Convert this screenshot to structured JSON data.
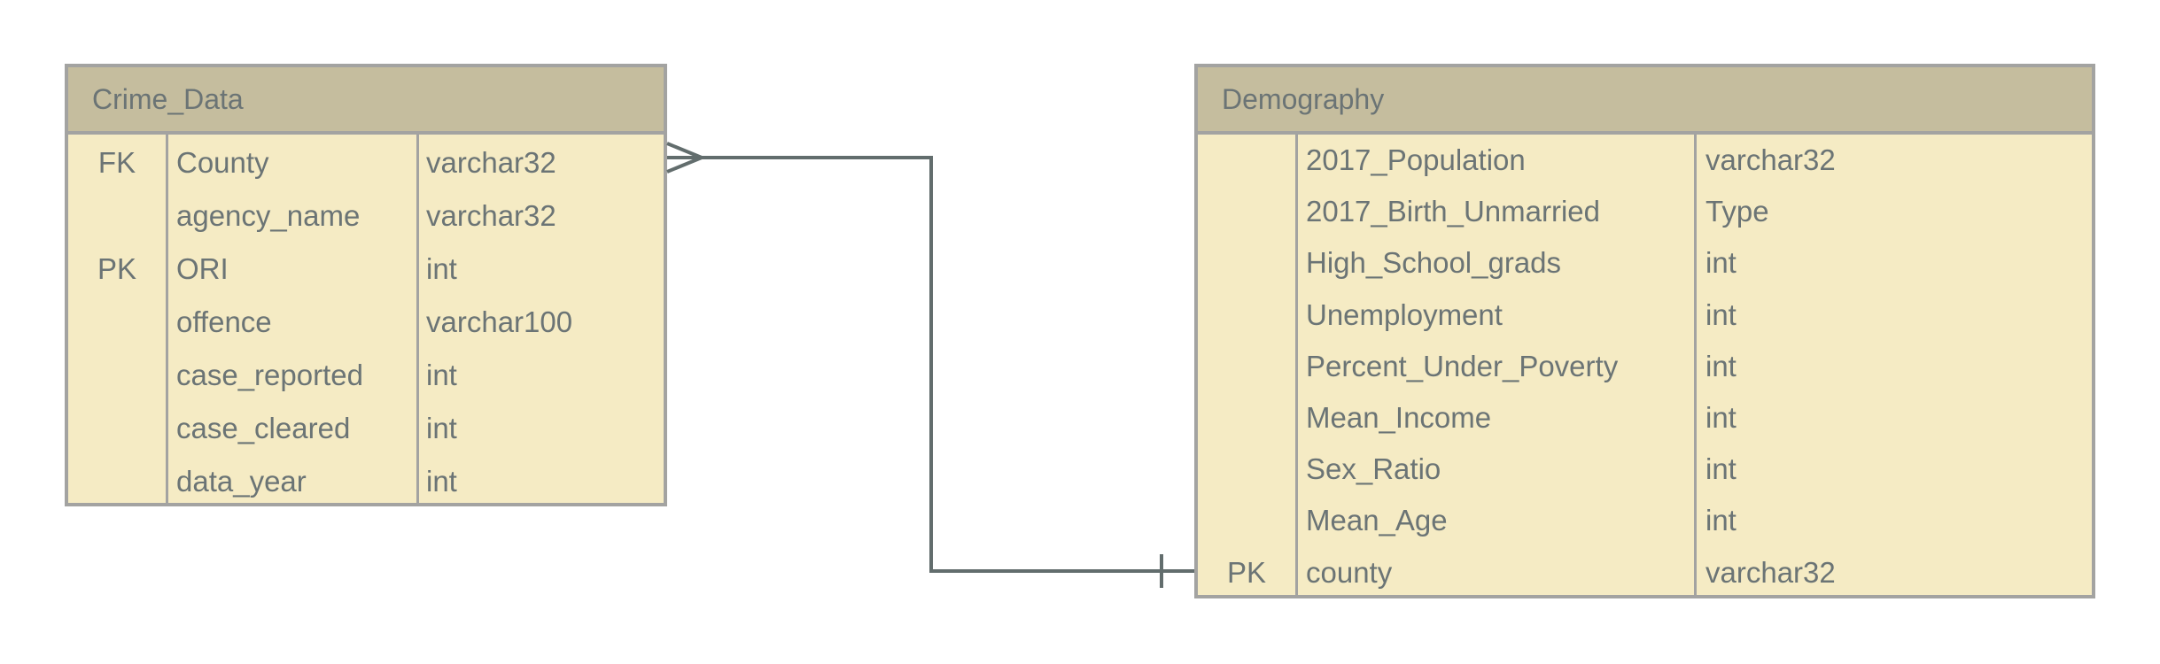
{
  "entities": [
    {
      "title": "Crime_Data",
      "fields": [
        {
          "key": "FK",
          "name": "County",
          "type": "varchar32"
        },
        {
          "key": "",
          "name": "agency_name",
          "type": "varchar32"
        },
        {
          "key": "PK",
          "name": "ORI",
          "type": "int"
        },
        {
          "key": "",
          "name": "offence",
          "type": "varchar100"
        },
        {
          "key": "",
          "name": "case_reported",
          "type": "int"
        },
        {
          "key": "",
          "name": "case_cleared",
          "type": "int"
        },
        {
          "key": "",
          "name": "data_year",
          "type": "int"
        }
      ]
    },
    {
      "title": "Demography",
      "fields": [
        {
          "key": "",
          "name": "2017_Population",
          "type": "varchar32"
        },
        {
          "key": "",
          "name": "2017_Birth_Unmarried",
          "type": "Type"
        },
        {
          "key": "",
          "name": "High_School_grads",
          "type": "int"
        },
        {
          "key": "",
          "name": "Unemployment",
          "type": "int"
        },
        {
          "key": "",
          "name": "Percent_Under_Poverty",
          "type": "int"
        },
        {
          "key": "",
          "name": "Mean_Income",
          "type": "int"
        },
        {
          "key": "",
          "name": "Sex_Ratio",
          "type": "int"
        },
        {
          "key": "",
          "name": "Mean_Age",
          "type": "int"
        },
        {
          "key": "PK",
          "name": "county",
          "type": "varchar32"
        }
      ]
    }
  ],
  "relationships": [
    {
      "from_entity": "Crime_Data",
      "from_field": "County",
      "from_cardinality": "many",
      "to_entity": "Demography",
      "to_field": "county",
      "to_cardinality": "one"
    }
  ],
  "colors": {
    "header_fill": "#c5bd9e",
    "body_fill": "#f5ebc4",
    "border": "#a3a3a1",
    "text": "#6b7475",
    "connector": "#626d6d"
  }
}
